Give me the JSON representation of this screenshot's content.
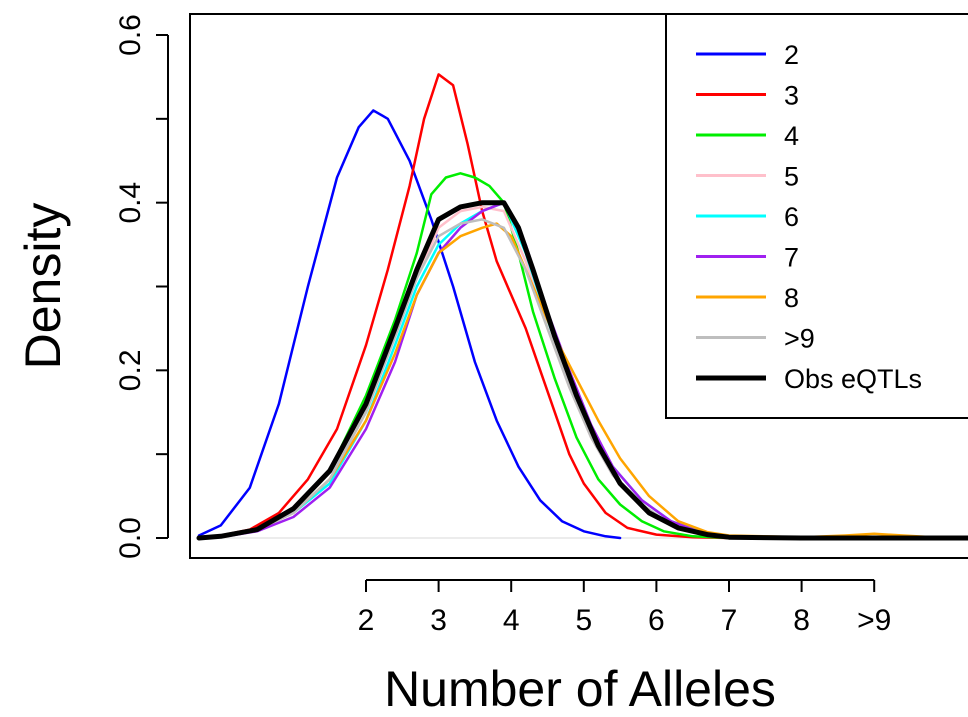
{
  "chart_data": {
    "type": "line",
    "xlabel": "Number of Alleles",
    "ylabel": "Density",
    "xlim": [
      -0.5,
      10.5
    ],
    "ylim": [
      0,
      0.6
    ],
    "x_ticks": [
      2,
      3,
      4,
      5,
      6,
      7,
      8,
      9
    ],
    "x_tick_labels": [
      "2",
      "3",
      "4",
      "5",
      "6",
      "7",
      "8",
      ">9"
    ],
    "y_ticks": [
      0.0,
      0.2,
      0.4,
      0.6
    ],
    "y_tick_labels": [
      "0.0",
      "0.2",
      "0.4",
      "0.6"
    ],
    "legend_position": "top-right",
    "series": [
      {
        "name": "2",
        "color": "#0000ff",
        "x": [
          -0.3,
          0.0,
          0.4,
          0.8,
          1.2,
          1.6,
          1.9,
          2.1,
          2.3,
          2.6,
          2.9,
          3.2,
          3.5,
          3.8,
          4.1,
          4.4,
          4.7,
          5.0,
          5.3,
          5.5
        ],
        "y": [
          0.003,
          0.015,
          0.06,
          0.16,
          0.3,
          0.43,
          0.49,
          0.51,
          0.5,
          0.45,
          0.38,
          0.3,
          0.21,
          0.14,
          0.085,
          0.045,
          0.02,
          0.008,
          0.002,
          0.0
        ]
      },
      {
        "name": "3",
        "color": "#ff0000",
        "x": [
          -0.3,
          0.0,
          0.4,
          0.8,
          1.2,
          1.6,
          2.0,
          2.3,
          2.6,
          2.8,
          3.0,
          3.2,
          3.4,
          3.6,
          3.8,
          4.0,
          4.2,
          4.4,
          4.6,
          4.8,
          5.0,
          5.3,
          5.6,
          6.0,
          6.5,
          7.0
        ],
        "y": [
          0.0,
          0.003,
          0.01,
          0.03,
          0.07,
          0.13,
          0.23,
          0.32,
          0.42,
          0.5,
          0.553,
          0.54,
          0.47,
          0.39,
          0.33,
          0.29,
          0.25,
          0.2,
          0.15,
          0.1,
          0.065,
          0.03,
          0.012,
          0.004,
          0.001,
          0.0
        ]
      },
      {
        "name": "4",
        "color": "#00ee00",
        "x": [
          -0.3,
          0.0,
          0.5,
          1.0,
          1.5,
          2.0,
          2.4,
          2.7,
          2.9,
          3.1,
          3.3,
          3.5,
          3.7,
          3.9,
          4.1,
          4.3,
          4.6,
          4.9,
          5.2,
          5.5,
          5.8,
          6.1,
          6.5,
          7.0
        ],
        "y": [
          0.0,
          0.002,
          0.01,
          0.035,
          0.08,
          0.17,
          0.26,
          0.34,
          0.41,
          0.43,
          0.435,
          0.43,
          0.42,
          0.4,
          0.34,
          0.27,
          0.19,
          0.12,
          0.07,
          0.04,
          0.02,
          0.008,
          0.002,
          0.0
        ]
      },
      {
        "name": "5",
        "color": "#ffc0cb",
        "x": [
          -0.3,
          0.0,
          0.5,
          1.0,
          1.5,
          2.0,
          2.4,
          2.7,
          3.0,
          3.3,
          3.6,
          3.9,
          4.2,
          4.5,
          4.8,
          5.1,
          5.4,
          5.8,
          6.2,
          6.6,
          7.0,
          8.0,
          9.0,
          10.5
        ],
        "y": [
          0.0,
          0.002,
          0.01,
          0.03,
          0.07,
          0.15,
          0.24,
          0.31,
          0.37,
          0.39,
          0.395,
          0.39,
          0.33,
          0.25,
          0.18,
          0.12,
          0.075,
          0.04,
          0.015,
          0.005,
          0.001,
          0.0,
          0.0,
          0.0
        ]
      },
      {
        "name": "6",
        "color": "#00ffff",
        "x": [
          -0.3,
          0.0,
          0.5,
          1.0,
          1.5,
          2.0,
          2.4,
          2.7,
          3.0,
          3.3,
          3.6,
          3.9,
          4.2,
          4.5,
          4.8,
          5.1,
          5.4,
          5.8,
          6.2,
          6.6,
          7.0,
          8.0,
          9.0,
          10.5
        ],
        "y": [
          0.0,
          0.002,
          0.01,
          0.03,
          0.065,
          0.14,
          0.23,
          0.3,
          0.35,
          0.375,
          0.39,
          0.4,
          0.34,
          0.26,
          0.19,
          0.13,
          0.085,
          0.045,
          0.02,
          0.008,
          0.002,
          0.0,
          0.0,
          0.0
        ]
      },
      {
        "name": "7",
        "color": "#a020f0",
        "x": [
          -0.3,
          0.0,
          0.5,
          1.0,
          1.5,
          2.0,
          2.4,
          2.7,
          3.0,
          3.3,
          3.6,
          3.9,
          4.2,
          4.5,
          4.8,
          5.1,
          5.4,
          5.8,
          6.2,
          6.6,
          7.0,
          8.0,
          9.0,
          10.5
        ],
        "y": [
          0.0,
          0.001,
          0.008,
          0.025,
          0.06,
          0.13,
          0.21,
          0.29,
          0.34,
          0.37,
          0.39,
          0.4,
          0.35,
          0.27,
          0.2,
          0.135,
          0.085,
          0.045,
          0.02,
          0.007,
          0.002,
          0.0,
          0.0,
          0.0
        ]
      },
      {
        "name": "8",
        "color": "#ffa500",
        "x": [
          -0.3,
          0.0,
          0.5,
          1.0,
          1.5,
          2.0,
          2.4,
          2.7,
          3.0,
          3.3,
          3.6,
          3.8,
          4.0,
          4.3,
          4.6,
          4.9,
          5.2,
          5.5,
          5.9,
          6.3,
          6.7,
          7.0,
          8.0,
          8.6,
          9.0,
          9.4,
          10.0,
          10.5
        ],
        "y": [
          0.0,
          0.002,
          0.01,
          0.03,
          0.07,
          0.14,
          0.22,
          0.29,
          0.34,
          0.36,
          0.37,
          0.375,
          0.36,
          0.3,
          0.24,
          0.19,
          0.14,
          0.095,
          0.05,
          0.02,
          0.007,
          0.003,
          0.001,
          0.003,
          0.005,
          0.003,
          0.0,
          0.0
        ]
      },
      {
        "name": ">9",
        "color": "#bebebe",
        "x": [
          -0.3,
          0.0,
          0.5,
          1.0,
          1.5,
          2.0,
          2.4,
          2.7,
          3.0,
          3.3,
          3.6,
          3.9,
          4.2,
          4.5,
          4.8,
          5.1,
          5.4,
          5.8,
          6.2,
          6.6,
          7.0,
          8.0,
          9.0,
          10.5
        ],
        "y": [
          0.0,
          0.002,
          0.01,
          0.03,
          0.07,
          0.15,
          0.24,
          0.31,
          0.36,
          0.375,
          0.38,
          0.37,
          0.32,
          0.25,
          0.18,
          0.12,
          0.075,
          0.04,
          0.016,
          0.006,
          0.002,
          0.0,
          0.0,
          0.0
        ]
      },
      {
        "name": "Obs eQTLs",
        "color": "#000000",
        "x": [
          -0.3,
          0.0,
          0.5,
          1.0,
          1.5,
          2.0,
          2.4,
          2.7,
          3.0,
          3.3,
          3.6,
          3.9,
          4.1,
          4.3,
          4.6,
          4.9,
          5.2,
          5.5,
          5.9,
          6.3,
          6.7,
          7.0,
          8.0,
          9.0,
          10.5
        ],
        "y": [
          0.0,
          0.002,
          0.01,
          0.035,
          0.08,
          0.16,
          0.25,
          0.32,
          0.38,
          0.395,
          0.4,
          0.4,
          0.37,
          0.32,
          0.24,
          0.17,
          0.11,
          0.065,
          0.03,
          0.012,
          0.004,
          0.001,
          0.0,
          0.0,
          0.0
        ]
      }
    ]
  }
}
